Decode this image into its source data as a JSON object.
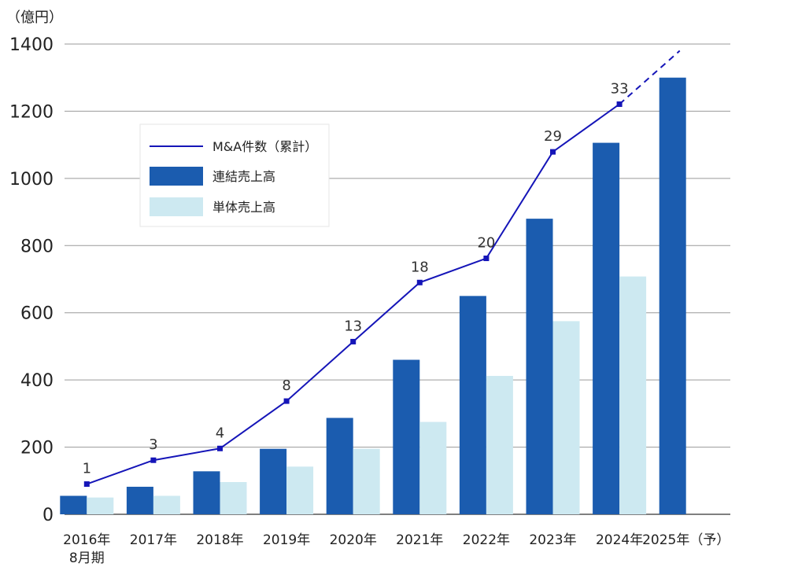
{
  "chart_data": {
    "type": "bar",
    "unit_label": "（億円）",
    "categories": [
      [
        "2016年",
        "8月期"
      ],
      [
        "2017年"
      ],
      [
        "2018年"
      ],
      [
        "2019年"
      ],
      [
        "2020年"
      ],
      [
        "2021年"
      ],
      [
        "2022年"
      ],
      [
        "2023年"
      ],
      [
        "2024年"
      ],
      [
        "2025年（予）"
      ]
    ],
    "ylim": [
      0,
      1400
    ],
    "yticks": [
      0,
      200,
      400,
      600,
      800,
      1000,
      1200,
      1400
    ],
    "grid": true,
    "legend_position": "upper-left",
    "series": [
      {
        "name": "連結売上高",
        "kind": "bar",
        "color": "#1b5caf",
        "values": [
          55,
          82,
          128,
          195,
          287,
          460,
          650,
          880,
          1106,
          1300
        ]
      },
      {
        "name": "単体売上高",
        "kind": "bar",
        "color": "#cde9f1",
        "values": [
          50,
          55,
          96,
          142,
          195,
          275,
          412,
          575,
          708,
          null
        ]
      },
      {
        "name": "M&A件数（累計）",
        "kind": "line",
        "color": "#1515b8",
        "positions_in_yunits": [
          90,
          161,
          196,
          337,
          514,
          690,
          762,
          1079,
          1221
        ],
        "labels": [
          "1",
          "3",
          "4",
          "8",
          "13",
          "18",
          "20",
          "29",
          "33"
        ],
        "projection_in_yunits": 1380
      }
    ]
  }
}
